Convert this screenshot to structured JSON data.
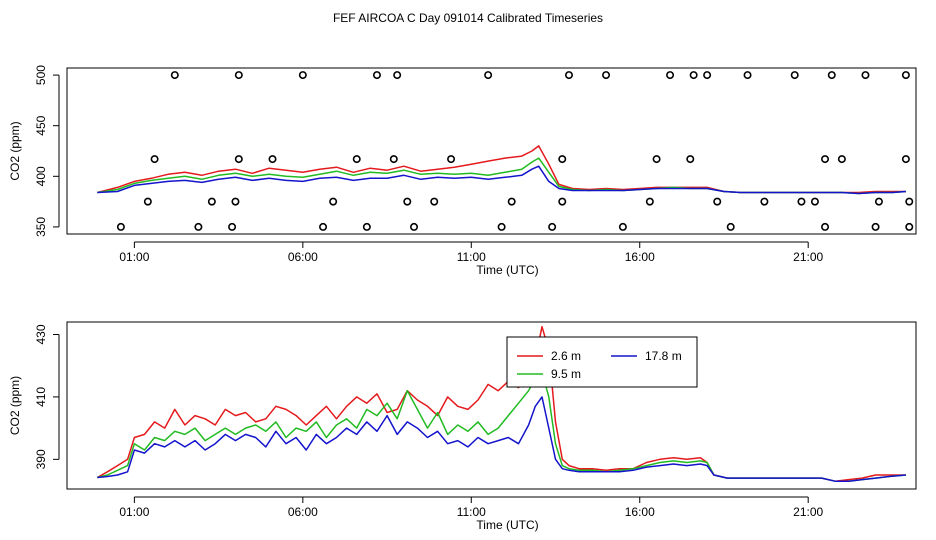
{
  "title": "FEF AIRCOA C  Day 091014  Calibrated Timeseries",
  "colors": {
    "red": "#e41a1c",
    "green": "#22bb22",
    "blue": "#1414cc",
    "flag": "#000000"
  },
  "chart_data": [
    {
      "type": "line",
      "panel": "top",
      "xlabel": "Time (UTC)",
      "ylabel": "CO2 (ppm)",
      "x_ticks": [
        "01:00",
        "06:00",
        "11:00",
        "16:00",
        "21:00"
      ],
      "x_tick_hours": [
        1,
        6,
        11,
        16,
        21
      ],
      "xlim_hours": [
        -1.0,
        24.2
      ],
      "y_ticks": [
        350,
        400,
        450,
        500
      ],
      "ylim": [
        343,
        507
      ],
      "x_hours": [
        -0.1,
        0.5,
        1,
        1.5,
        2,
        2.5,
        3,
        3.5,
        4,
        4.5,
        5,
        5.5,
        6,
        6.5,
        7,
        7.5,
        8,
        8.5,
        9,
        9.5,
        10,
        10.5,
        11,
        11.5,
        12,
        12.5,
        12.8,
        13,
        13.3,
        13.6,
        14,
        14.5,
        15,
        15.5,
        16,
        16.5,
        17,
        17.5,
        18,
        18.5,
        19,
        19.5,
        20,
        20.5,
        21,
        21.5,
        22,
        22.5,
        23,
        23.5,
        23.9
      ],
      "series": [
        {
          "name": "2.6 m",
          "color": "red",
          "values": [
            384,
            389,
            395,
            398,
            402,
            404,
            401,
            405,
            407,
            403,
            408,
            406,
            404,
            407,
            409,
            404,
            408,
            406,
            410,
            405,
            407,
            409,
            412,
            415,
            418,
            420,
            425,
            430,
            412,
            392,
            388,
            387,
            388,
            387,
            388,
            389,
            389,
            389,
            389,
            385,
            384,
            384,
            384,
            384,
            384,
            384,
            384,
            384,
            385,
            385,
            385
          ]
        },
        {
          "name": "9.5 m",
          "color": "green",
          "values": [
            384,
            387,
            393,
            396,
            398,
            400,
            397,
            401,
            403,
            400,
            402,
            400,
            399,
            402,
            405,
            401,
            404,
            403,
            406,
            402,
            403,
            402,
            403,
            401,
            404,
            407,
            414,
            418,
            404,
            390,
            387,
            386,
            387,
            386,
            387,
            388,
            389,
            388,
            388,
            385,
            384,
            384,
            384,
            384,
            384,
            384,
            384,
            383,
            384,
            384,
            385
          ]
        },
        {
          "name": "17.8 m",
          "color": "blue",
          "values": [
            384,
            385,
            391,
            393,
            395,
            396,
            394,
            397,
            399,
            396,
            398,
            396,
            395,
            398,
            399,
            396,
            398,
            398,
            401,
            397,
            399,
            398,
            399,
            397,
            399,
            401,
            407,
            410,
            395,
            388,
            386,
            386,
            386,
            386,
            387,
            388,
            388,
            388,
            388,
            385,
            384,
            384,
            384,
            384,
            384,
            384,
            384,
            383,
            384,
            384,
            385
          ]
        }
      ],
      "flag_points": [
        [
          0.6,
          350
        ],
        [
          1.4,
          375
        ],
        [
          1.6,
          417
        ],
        [
          2.2,
          500
        ],
        [
          2.9,
          350
        ],
        [
          3.3,
          375
        ],
        [
          3.9,
          350
        ],
        [
          4.0,
          375
        ],
        [
          4.1,
          417
        ],
        [
          4.1,
          500
        ],
        [
          5.1,
          417
        ],
        [
          6.0,
          500
        ],
        [
          6.6,
          350
        ],
        [
          6.9,
          375
        ],
        [
          7.6,
          417
        ],
        [
          7.9,
          350
        ],
        [
          8.2,
          500
        ],
        [
          8.7,
          417
        ],
        [
          8.8,
          500
        ],
        [
          9.1,
          375
        ],
        [
          9.3,
          350
        ],
        [
          9.9,
          375
        ],
        [
          10.4,
          417
        ],
        [
          11.5,
          500
        ],
        [
          11.9,
          350
        ],
        [
          12.2,
          375
        ],
        [
          13.4,
          350
        ],
        [
          13.7,
          417
        ],
        [
          13.7,
          375
        ],
        [
          13.9,
          500
        ],
        [
          15.0,
          500
        ],
        [
          15.5,
          350
        ],
        [
          16.3,
          375
        ],
        [
          16.5,
          417
        ],
        [
          16.9,
          500
        ],
        [
          17.5,
          417
        ],
        [
          17.6,
          500
        ],
        [
          18.0,
          500
        ],
        [
          18.3,
          375
        ],
        [
          18.7,
          350
        ],
        [
          19.2,
          500
        ],
        [
          19.7,
          375
        ],
        [
          20.6,
          500
        ],
        [
          20.8,
          375
        ],
        [
          21.2,
          375
        ],
        [
          21.5,
          350
        ],
        [
          21.5,
          417
        ],
        [
          21.7,
          500
        ],
        [
          22.0,
          417
        ],
        [
          22.7,
          500
        ],
        [
          23.0,
          350
        ],
        [
          23.1,
          375
        ],
        [
          23.9,
          417
        ],
        [
          23.9,
          500
        ],
        [
          24.0,
          375
        ],
        [
          24.0,
          350
        ]
      ]
    },
    {
      "type": "line",
      "panel": "bottom",
      "xlabel": "Time (UTC)",
      "ylabel": "CO2 (ppm)",
      "x_ticks": [
        "01:00",
        "06:00",
        "11:00",
        "16:00",
        "21:00"
      ],
      "x_tick_hours": [
        1,
        6,
        11,
        16,
        21
      ],
      "xlim_hours": [
        -1.0,
        24.2
      ],
      "y_ticks": [
        390,
        410,
        430
      ],
      "ylim": [
        380.5,
        434
      ],
      "legend": {
        "placement": "top-center",
        "entries": [
          {
            "name": "2.6 m",
            "color": "red"
          },
          {
            "name": "17.8 m",
            "color": "blue"
          },
          {
            "name": "9.5 m",
            "color": "green"
          }
        ]
      },
      "x_hours": [
        -0.1,
        0.2,
        0.5,
        0.8,
        1.0,
        1.3,
        1.6,
        1.9,
        2.2,
        2.5,
        2.8,
        3.1,
        3.4,
        3.7,
        4.0,
        4.3,
        4.6,
        4.9,
        5.2,
        5.5,
        5.8,
        6.1,
        6.4,
        6.7,
        7.0,
        7.3,
        7.6,
        7.9,
        8.2,
        8.5,
        8.8,
        9.1,
        9.4,
        9.7,
        10.0,
        10.3,
        10.6,
        10.9,
        11.2,
        11.5,
        11.8,
        12.1,
        12.4,
        12.7,
        12.9,
        13.1,
        13.3,
        13.5,
        13.7,
        13.9,
        14.2,
        14.6,
        15.0,
        15.4,
        15.8,
        16.2,
        16.6,
        17.0,
        17.4,
        17.8,
        18.0,
        18.2,
        18.6,
        19.0,
        19.4,
        19.8,
        20.2,
        20.6,
        21.0,
        21.4,
        21.8,
        22.2,
        22.6,
        23.0,
        23.4,
        23.9
      ],
      "series": [
        {
          "name": "2.6 m",
          "color": "red",
          "values": [
            384.2,
            386.0,
            388.0,
            390.0,
            397.0,
            398.0,
            402.0,
            400.0,
            406.0,
            401.0,
            404.0,
            403.0,
            401.0,
            406.0,
            404.0,
            405.0,
            402.0,
            403.0,
            407.0,
            406.0,
            404.0,
            401.0,
            404.0,
            407.0,
            403.0,
            407.0,
            410.0,
            408.0,
            411.0,
            405.0,
            406.0,
            412.0,
            409.0,
            407.0,
            404.0,
            410.0,
            407.0,
            406.0,
            409.0,
            414.0,
            412.0,
            415.0,
            413.0,
            418.0,
            422.0,
            432.5,
            425.0,
            402.0,
            390.0,
            388.0,
            387.0,
            387.0,
            386.5,
            387.0,
            387.0,
            389.0,
            390.0,
            390.5,
            390.0,
            390.5,
            389.0,
            385.0,
            384.0,
            384.0,
            384.0,
            384.0,
            384.0,
            384.0,
            384.0,
            384.0,
            383.0,
            383.5,
            384.0,
            385.0,
            385.0,
            385.0
          ]
        },
        {
          "name": "9.5 m",
          "color": "green",
          "values": [
            384.2,
            385.0,
            386.5,
            388.0,
            395.0,
            393.0,
            397.0,
            396.0,
            399.0,
            398.0,
            400.0,
            396.0,
            398.0,
            400.0,
            398.0,
            400.0,
            401.0,
            399.0,
            402.0,
            397.0,
            400.0,
            399.0,
            402.0,
            397.0,
            401.0,
            403.0,
            400.0,
            406.0,
            404.0,
            408.0,
            403.0,
            412.0,
            406.0,
            400.0,
            405.0,
            398.0,
            401.0,
            399.0,
            402.0,
            398.0,
            400.0,
            404.0,
            408.0,
            412.0,
            416.0,
            418.0,
            410.0,
            395.0,
            388.0,
            387.0,
            386.5,
            386.5,
            386.0,
            386.5,
            387.0,
            388.0,
            389.0,
            389.5,
            389.0,
            389.5,
            389.0,
            385.0,
            384.0,
            384.0,
            384.0,
            384.0,
            384.0,
            384.0,
            384.0,
            384.0,
            383.0,
            383.0,
            383.5,
            384.0,
            384.5,
            385.0
          ]
        },
        {
          "name": "17.8 m",
          "color": "blue",
          "values": [
            384.2,
            384.5,
            385.0,
            386.0,
            393.0,
            392.0,
            395.0,
            394.0,
            396.0,
            394.0,
            396.0,
            393.0,
            395.0,
            398.0,
            396.0,
            398.0,
            397.0,
            394.0,
            399.0,
            395.0,
            397.0,
            393.0,
            398.0,
            395.0,
            397.0,
            400.0,
            398.0,
            402.0,
            399.0,
            404.0,
            398.0,
            402.0,
            400.0,
            397.0,
            399.0,
            395.0,
            396.0,
            394.0,
            397.0,
            395.0,
            396.0,
            397.0,
            395.0,
            401.0,
            407.0,
            410.0,
            400.0,
            390.0,
            387.0,
            386.5,
            386.0,
            386.0,
            386.0,
            386.0,
            386.5,
            387.5,
            388.0,
            388.5,
            388.0,
            388.5,
            388.0,
            385.0,
            384.0,
            384.0,
            384.0,
            384.0,
            384.0,
            384.0,
            384.0,
            384.0,
            383.0,
            383.0,
            383.5,
            384.0,
            384.5,
            385.0
          ]
        }
      ]
    }
  ]
}
